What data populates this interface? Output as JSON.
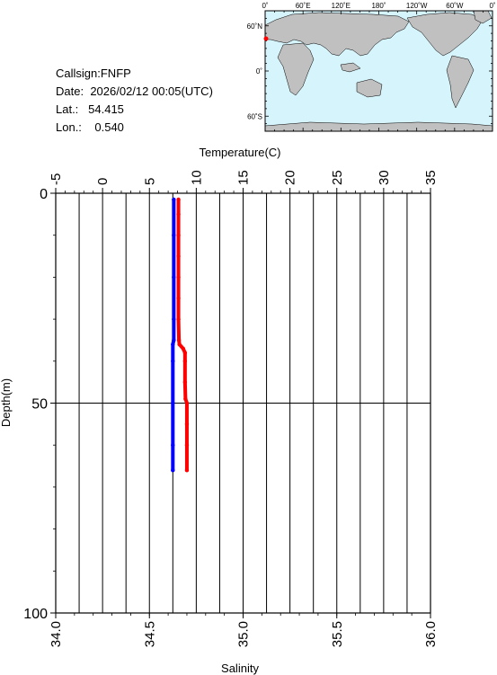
{
  "station": {
    "callsign_label": "Callsign:",
    "callsign": "FNFP",
    "date_label": "Date:",
    "date": "2026/02/12 00:05(UTC)",
    "lat_label": "Lat.:",
    "lat": "54.415",
    "lon_label": "Lon.:",
    "lon": "0.540"
  },
  "map": {
    "top_labels": [
      "0˚",
      "60˚E",
      "120˚E",
      "180˚",
      "120˚W",
      "60˚W",
      "0˚"
    ],
    "left_labels": [
      "60˚N",
      "0˚",
      "60˚S"
    ],
    "ocean_color": "#d6f4fb",
    "land_color": "#c0c0c0",
    "marker_color": "#ff0000"
  },
  "chart_data": {
    "type": "line",
    "x_top_label": "Temperature(C)",
    "x_top_ticks": [
      "-5",
      "0",
      "5",
      "10",
      "15",
      "20",
      "25",
      "30",
      "35"
    ],
    "x_top_range": [
      -5,
      35
    ],
    "x_bottom_label": "Salinity",
    "x_bottom_ticks": [
      "34.0",
      "34.5",
      "35.0",
      "35.5",
      "36.0"
    ],
    "x_bottom_range": [
      34.0,
      36.0
    ],
    "y_label": "Depth(m)",
    "y_ticks": [
      "0",
      "50",
      "100"
    ],
    "y_range": [
      0,
      100
    ],
    "y_inverted": true,
    "grid": true,
    "series": [
      {
        "axis": "temperature",
        "color": "#ff0000",
        "points": [
          [
            8.1,
            1.5
          ],
          [
            8.1,
            5
          ],
          [
            8.1,
            10
          ],
          [
            8.1,
            15
          ],
          [
            8.1,
            20
          ],
          [
            8.1,
            25
          ],
          [
            8.1,
            30
          ],
          [
            8.15,
            35
          ],
          [
            8.2,
            36
          ],
          [
            8.6,
            37
          ],
          [
            8.8,
            38
          ],
          [
            8.8,
            40
          ],
          [
            8.8,
            45
          ],
          [
            8.85,
            49
          ],
          [
            9.0,
            50
          ],
          [
            9.0,
            55
          ],
          [
            9.0,
            60
          ],
          [
            9.0,
            66
          ]
        ]
      },
      {
        "axis": "salinity",
        "color": "#0000ff",
        "points": [
          [
            34.63,
            1.5
          ],
          [
            34.63,
            10
          ],
          [
            34.63,
            20
          ],
          [
            34.63,
            30
          ],
          [
            34.63,
            35
          ],
          [
            34.625,
            36
          ],
          [
            34.625,
            40
          ],
          [
            34.625,
            50
          ],
          [
            34.625,
            60
          ],
          [
            34.625,
            66
          ]
        ]
      }
    ]
  }
}
